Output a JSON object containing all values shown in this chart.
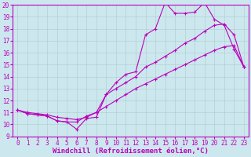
{
  "xlabel": "Windchill (Refroidissement éolien,°C)",
  "xlim": [
    -0.5,
    23.5
  ],
  "ylim": [
    9,
    20
  ],
  "xticks": [
    0,
    1,
    2,
    3,
    4,
    5,
    6,
    7,
    8,
    9,
    10,
    11,
    12,
    13,
    14,
    15,
    16,
    17,
    18,
    19,
    20,
    21,
    22,
    23
  ],
  "yticks": [
    9,
    10,
    11,
    12,
    13,
    14,
    15,
    16,
    17,
    18,
    19,
    20
  ],
  "line_color": "#bb00bb",
  "background_color": "#cce8ee",
  "line1_x": [
    0,
    1,
    2,
    3,
    4,
    5,
    6,
    7,
    8,
    9,
    10,
    11,
    12,
    13,
    14,
    15,
    16,
    17,
    18,
    19,
    20,
    21,
    22,
    23
  ],
  "line1_y": [
    11.2,
    10.9,
    10.8,
    10.7,
    10.3,
    10.2,
    9.6,
    10.5,
    10.6,
    12.5,
    13.5,
    14.2,
    14.4,
    17.5,
    18.0,
    20.2,
    19.3,
    19.3,
    19.4,
    20.2,
    18.8,
    18.3,
    16.3,
    14.8
  ],
  "line2_x": [
    0,
    1,
    2,
    3,
    4,
    5,
    6,
    7,
    8,
    9,
    10,
    11,
    12,
    13,
    14,
    15,
    16,
    17,
    18,
    19,
    20,
    21,
    22,
    23
  ],
  "line2_y": [
    11.2,
    10.9,
    10.8,
    10.7,
    10.3,
    10.2,
    10.2,
    10.7,
    11.0,
    12.5,
    13.0,
    13.5,
    14.0,
    14.8,
    15.2,
    15.7,
    16.2,
    16.8,
    17.2,
    17.8,
    18.3,
    18.4,
    17.5,
    14.8
  ],
  "line3_x": [
    0,
    1,
    2,
    3,
    4,
    5,
    6,
    7,
    8,
    9,
    10,
    11,
    12,
    13,
    14,
    15,
    16,
    17,
    18,
    19,
    20,
    21,
    22,
    23
  ],
  "line3_y": [
    11.2,
    11.0,
    10.9,
    10.8,
    10.6,
    10.5,
    10.4,
    10.6,
    11.0,
    11.5,
    12.0,
    12.5,
    13.0,
    13.4,
    13.8,
    14.2,
    14.6,
    15.0,
    15.4,
    15.8,
    16.2,
    16.5,
    16.6,
    14.8
  ],
  "tick_fontsize": 5.5,
  "label_fontsize": 6.5
}
